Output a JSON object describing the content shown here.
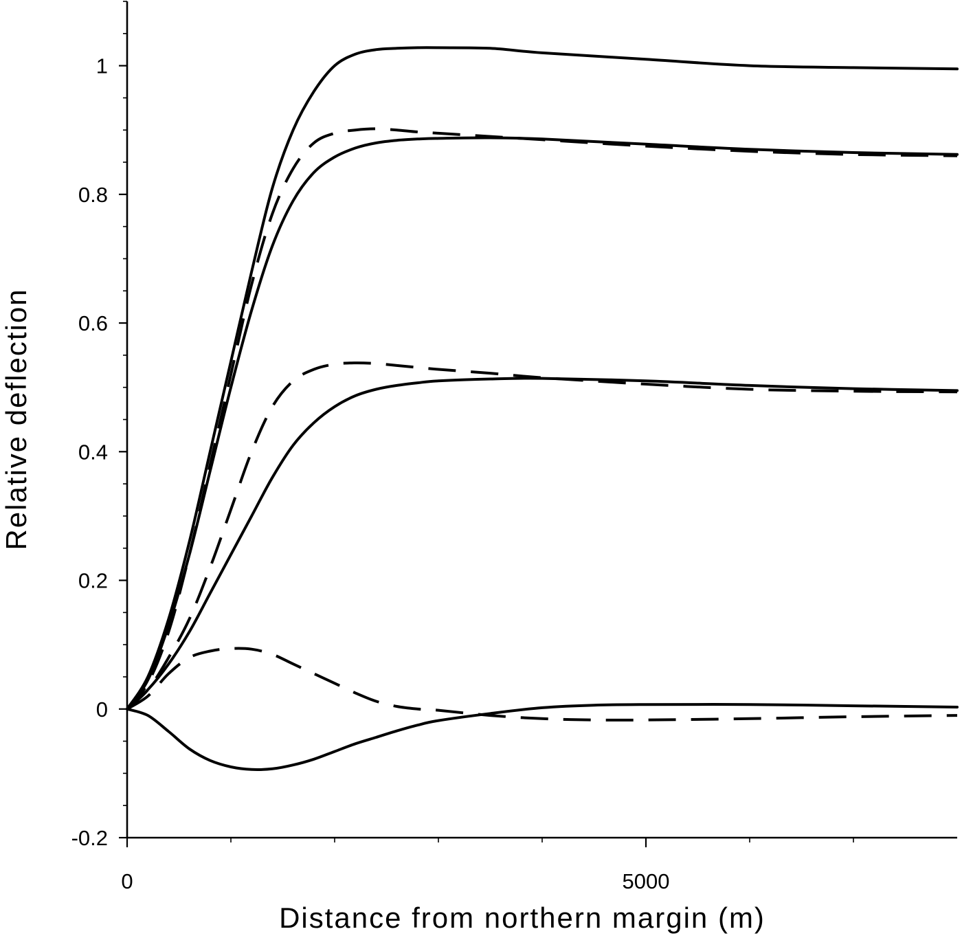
{
  "chart_data": {
    "type": "line",
    "title": "",
    "xlabel": "Distance from northern margin (m)",
    "ylabel": "Relative deflection",
    "xlim": [
      0,
      8000
    ],
    "ylim": [
      -0.2,
      1.1
    ],
    "xticks": [
      0,
      5000
    ],
    "xtick_labels": [
      "0",
      "5000"
    ],
    "x_minor_ticks": [
      1000,
      2000,
      3000,
      4000,
      6000,
      7000
    ],
    "yticks": [
      -0.2,
      0,
      0.2,
      0.4,
      0.6,
      0.8,
      1
    ],
    "ytick_labels": [
      "-0.2",
      "0",
      "0.2",
      "0.4",
      "0.6",
      "0.8",
      "1"
    ],
    "y_minor_step": 0.05,
    "grid": false,
    "legend": "none",
    "series": [
      {
        "style": "solid",
        "x": [
          0,
          200,
          400,
          600,
          800,
          1000,
          1200,
          1400,
          1600,
          1800,
          2000,
          2200,
          2400,
          2600,
          2800,
          3000,
          3500,
          4000,
          5000,
          6000,
          7000,
          8000
        ],
        "y": [
          0,
          0.05,
          0.14,
          0.26,
          0.4,
          0.54,
          0.68,
          0.81,
          0.9,
          0.96,
          1.0,
          1.018,
          1.025,
          1.027,
          1.028,
          1.028,
          1.027,
          1.02,
          1.01,
          1.0,
          0.997,
          0.995
        ]
      },
      {
        "style": "dashed",
        "x": [
          0,
          200,
          400,
          600,
          800,
          1000,
          1200,
          1400,
          1600,
          1800,
          2000,
          2200,
          2400,
          2600,
          2800,
          3000,
          3500,
          4000,
          5000,
          6000,
          7000,
          8000
        ],
        "y": [
          0,
          0.04,
          0.12,
          0.24,
          0.38,
          0.52,
          0.66,
          0.77,
          0.84,
          0.88,
          0.895,
          0.9,
          0.902,
          0.9,
          0.897,
          0.895,
          0.89,
          0.885,
          0.875,
          0.867,
          0.862,
          0.86
        ]
      },
      {
        "style": "solid",
        "x": [
          0,
          200,
          400,
          600,
          800,
          1000,
          1200,
          1400,
          1600,
          1800,
          2000,
          2200,
          2400,
          2600,
          2800,
          3000,
          3500,
          4000,
          5000,
          6000,
          7000,
          8000
        ],
        "y": [
          0,
          0.045,
          0.13,
          0.24,
          0.37,
          0.5,
          0.62,
          0.72,
          0.79,
          0.834,
          0.858,
          0.872,
          0.88,
          0.884,
          0.886,
          0.887,
          0.888,
          0.886,
          0.878,
          0.87,
          0.865,
          0.862
        ]
      },
      {
        "style": "dashed",
        "x": [
          0,
          200,
          400,
          600,
          800,
          1000,
          1200,
          1400,
          1600,
          1800,
          2000,
          2200,
          2400,
          2600,
          2800,
          3000,
          3500,
          4000,
          5000,
          6000,
          7000,
          8000
        ],
        "y": [
          0,
          0.03,
          0.08,
          0.14,
          0.22,
          0.31,
          0.4,
          0.47,
          0.51,
          0.528,
          0.536,
          0.538,
          0.537,
          0.534,
          0.531,
          0.528,
          0.522,
          0.515,
          0.505,
          0.497,
          0.494,
          0.493
        ]
      },
      {
        "style": "solid",
        "x": [
          0,
          200,
          400,
          600,
          800,
          1000,
          1200,
          1400,
          1600,
          1800,
          2000,
          2200,
          2400,
          2600,
          2800,
          3000,
          3500,
          4000,
          5000,
          6000,
          7000,
          8000
        ],
        "y": [
          0,
          0.03,
          0.07,
          0.12,
          0.18,
          0.24,
          0.3,
          0.36,
          0.41,
          0.445,
          0.47,
          0.487,
          0.497,
          0.503,
          0.507,
          0.51,
          0.513,
          0.514,
          0.51,
          0.503,
          0.498,
          0.495
        ]
      },
      {
        "style": "dashed",
        "x": [
          0,
          200,
          400,
          600,
          800,
          1000,
          1200,
          1400,
          1600,
          1800,
          2000,
          2200,
          2400,
          2600,
          2800,
          3000,
          3500,
          4000,
          4500,
          5000,
          6000,
          7000,
          8000
        ],
        "y": [
          0,
          0.02,
          0.055,
          0.08,
          0.09,
          0.094,
          0.093,
          0.085,
          0.07,
          0.055,
          0.04,
          0.025,
          0.012,
          0.004,
          0.0,
          -0.002,
          -0.01,
          -0.015,
          -0.017,
          -0.017,
          -0.015,
          -0.012,
          -0.01
        ]
      },
      {
        "style": "solid",
        "x": [
          0,
          200,
          400,
          600,
          800,
          1000,
          1200,
          1400,
          1600,
          1800,
          2000,
          2200,
          2400,
          2600,
          2800,
          3000,
          3500,
          4000,
          4500,
          5000,
          6000,
          7000,
          8000
        ],
        "y": [
          0,
          -0.01,
          -0.035,
          -0.062,
          -0.08,
          -0.09,
          -0.094,
          -0.093,
          -0.087,
          -0.078,
          -0.066,
          -0.054,
          -0.044,
          -0.034,
          -0.025,
          -0.018,
          -0.007,
          0.002,
          0.006,
          0.007,
          0.007,
          0.005,
          0.003
        ]
      }
    ]
  }
}
